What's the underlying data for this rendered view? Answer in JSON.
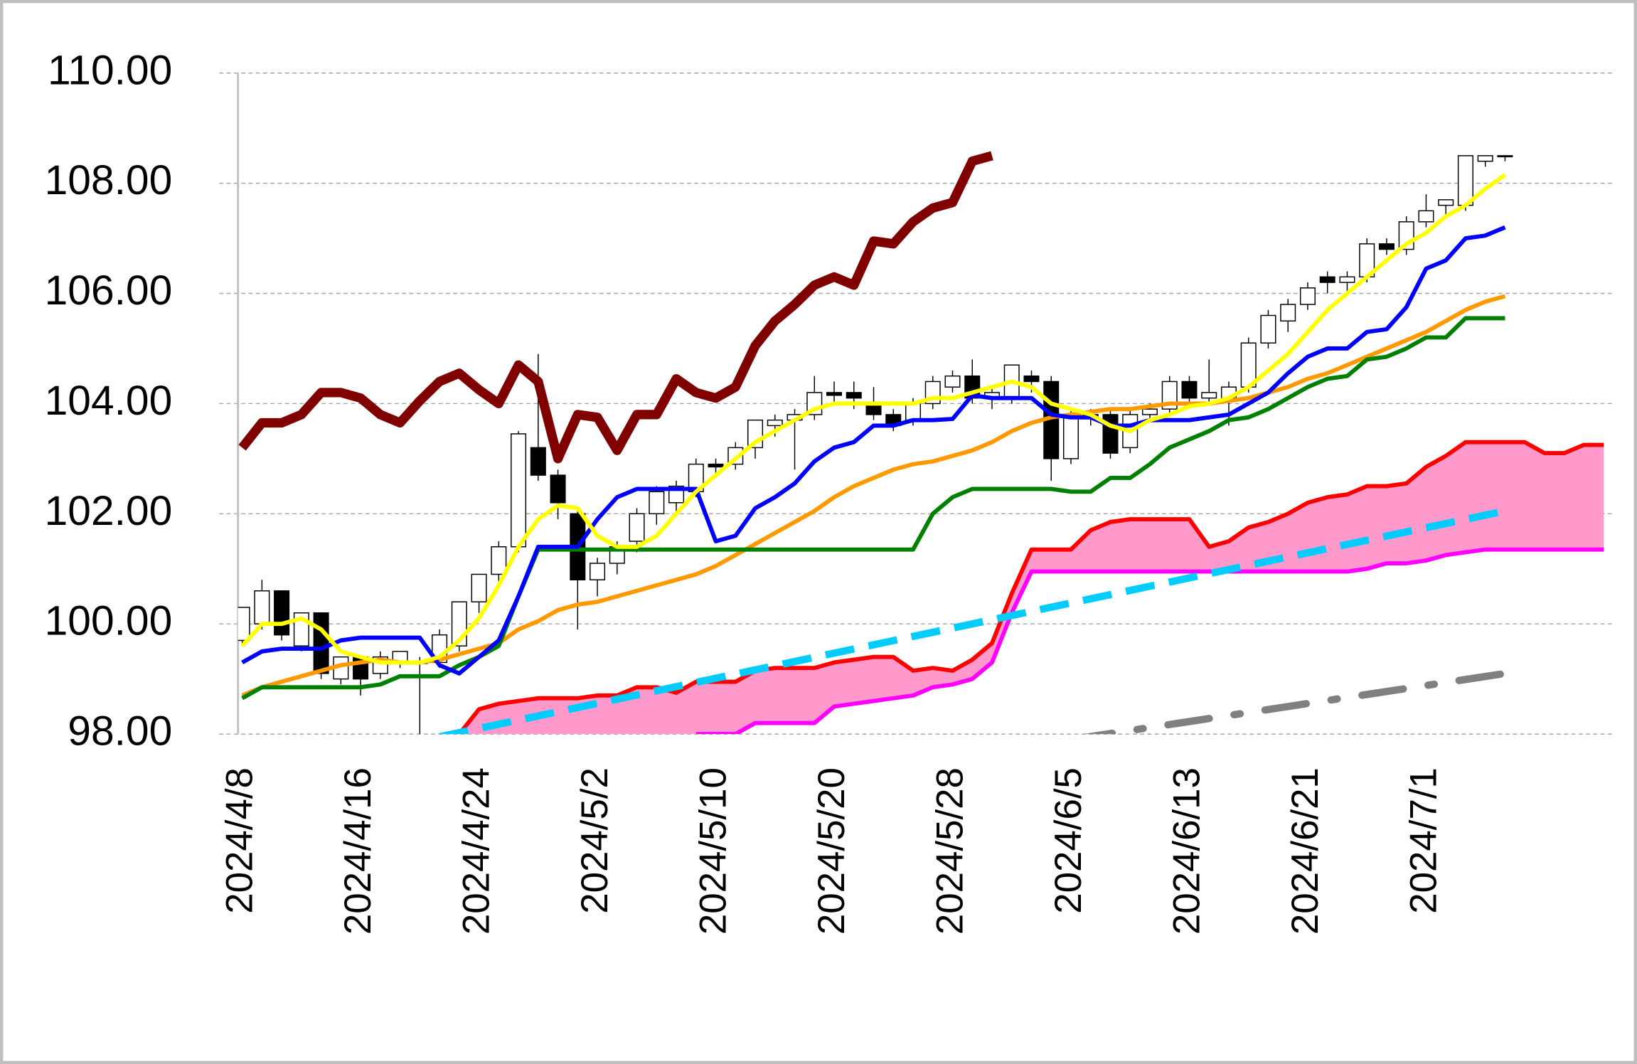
{
  "chart_data": {
    "type": "candlestick",
    "categories": [
      "2024/4/8",
      null,
      null,
      null,
      null,
      null,
      "2024/4/16",
      null,
      null,
      null,
      null,
      null,
      "2024/4/24",
      null,
      null,
      null,
      null,
      null,
      "2024/5/2",
      null,
      null,
      null,
      null,
      null,
      "2024/5/10",
      null,
      null,
      null,
      null,
      null,
      "2024/5/20",
      null,
      null,
      null,
      null,
      null,
      "2024/5/28",
      null,
      null,
      null,
      null,
      null,
      "2024/6/5",
      null,
      null,
      null,
      null,
      null,
      "2024/6/13",
      null,
      null,
      null,
      null,
      null,
      "2024/6/21",
      null,
      null,
      null,
      null,
      null,
      "2024/7/1",
      null,
      null,
      null,
      null,
      null,
      null,
      null,
      null,
      null
    ],
    "ylim": [
      98,
      110
    ],
    "yticks": [
      {
        "value": 98,
        "label": "98.00"
      },
      {
        "value": 100,
        "label": "100.00"
      },
      {
        "value": 102,
        "label": "102.00"
      },
      {
        "value": 104,
        "label": "104.00"
      },
      {
        "value": 106,
        "label": "106.00"
      },
      {
        "value": 108,
        "label": "108.00"
      },
      {
        "value": 110,
        "label": "110.00"
      }
    ],
    "grid": true,
    "up_color": "#ffffff",
    "down_color": "#000000",
    "candles": [
      [
        99.7,
        100.3,
        99.6,
        100.3
      ],
      [
        100.0,
        100.8,
        99.9,
        100.6
      ],
      [
        100.6,
        100.6,
        99.7,
        99.8
      ],
      [
        99.6,
        100.2,
        99.5,
        100.2
      ],
      [
        100.2,
        100.2,
        99.0,
        99.1
      ],
      [
        99.0,
        99.4,
        98.9,
        99.4
      ],
      [
        99.4,
        99.4,
        98.7,
        99.0
      ],
      [
        99.1,
        99.5,
        99.0,
        99.4
      ],
      [
        99.3,
        99.5,
        99.2,
        99.5
      ],
      [
        99.3,
        99.4,
        97.9,
        99.3
      ],
      [
        99.3,
        99.9,
        99.2,
        99.8
      ],
      [
        99.6,
        100.4,
        99.5,
        100.4
      ],
      [
        100.4,
        100.9,
        100.2,
        100.9
      ],
      [
        100.9,
        101.5,
        100.7,
        101.4
      ],
      [
        101.4,
        103.5,
        101.3,
        103.45
      ],
      [
        103.2,
        104.9,
        102.6,
        102.7
      ],
      [
        102.7,
        102.8,
        101.9,
        102.2
      ],
      [
        102.0,
        102.1,
        99.9,
        100.8
      ],
      [
        100.8,
        101.2,
        100.5,
        101.1
      ],
      [
        101.1,
        101.5,
        100.9,
        101.4
      ],
      [
        101.5,
        102.1,
        101.3,
        102.0
      ],
      [
        102.0,
        102.5,
        101.8,
        102.4
      ],
      [
        102.2,
        102.6,
        102.0,
        102.5
      ],
      [
        102.4,
        103.0,
        102.3,
        102.9
      ],
      [
        102.9,
        103.0,
        102.7,
        102.85
      ],
      [
        102.9,
        103.3,
        102.8,
        103.2
      ],
      [
        103.2,
        103.7,
        103.0,
        103.7
      ],
      [
        103.6,
        103.8,
        103.4,
        103.7
      ],
      [
        103.7,
        103.9,
        102.8,
        103.8
      ],
      [
        103.8,
        104.5,
        103.7,
        104.2
      ],
      [
        104.2,
        104.4,
        104.0,
        104.15
      ],
      [
        104.2,
        104.4,
        103.9,
        104.1
      ],
      [
        104.0,
        104.3,
        103.7,
        103.8
      ],
      [
        103.8,
        103.9,
        103.5,
        103.6
      ],
      [
        103.7,
        104.1,
        103.6,
        104.0
      ],
      [
        104.0,
        104.5,
        103.9,
        104.4
      ],
      [
        104.3,
        104.6,
        104.2,
        104.5
      ],
      [
        104.5,
        104.8,
        104.0,
        104.1
      ],
      [
        104.1,
        104.3,
        103.9,
        104.2
      ],
      [
        104.1,
        104.7,
        104.0,
        104.7
      ],
      [
        104.5,
        104.6,
        104.2,
        104.4
      ],
      [
        104.4,
        104.5,
        102.6,
        103.0
      ],
      [
        103.0,
        103.9,
        102.9,
        103.8
      ],
      [
        103.8,
        103.9,
        103.6,
        103.75
      ],
      [
        103.8,
        103.9,
        103.0,
        103.1
      ],
      [
        103.2,
        103.9,
        103.1,
        103.8
      ],
      [
        103.8,
        104.0,
        103.7,
        103.9
      ],
      [
        103.9,
        104.5,
        103.8,
        104.4
      ],
      [
        104.4,
        104.5,
        104.0,
        104.1
      ],
      [
        104.1,
        104.8,
        104.0,
        104.2
      ],
      [
        104.1,
        104.4,
        103.6,
        104.3
      ],
      [
        104.3,
        105.2,
        104.2,
        105.1
      ],
      [
        105.1,
        105.7,
        105.0,
        105.6
      ],
      [
        105.5,
        105.9,
        105.3,
        105.8
      ],
      [
        105.8,
        106.2,
        105.7,
        106.1
      ],
      [
        106.3,
        106.4,
        106.0,
        106.2
      ],
      [
        106.2,
        106.4,
        106.0,
        106.3
      ],
      [
        106.3,
        107.0,
        106.2,
        106.9
      ],
      [
        106.9,
        107.0,
        106.7,
        106.8
      ],
      [
        106.8,
        107.4,
        106.7,
        107.3
      ],
      [
        107.3,
        107.8,
        107.2,
        107.5
      ],
      [
        107.6,
        107.7,
        107.4,
        107.7
      ],
      [
        107.6,
        108.5,
        107.5,
        108.5
      ],
      [
        108.4,
        108.5,
        108.3,
        108.5
      ],
      [
        108.5,
        108.5,
        108.4,
        108.5
      ],
      null,
      null,
      null,
      null,
      null
    ],
    "cloud": {
      "color": "#ff99cc"
    },
    "series": [
      {
        "color": "#ff0000",
        "style": "solid",
        "values": [
          null,
          null,
          null,
          null,
          null,
          null,
          null,
          null,
          null,
          null,
          null,
          98.0,
          98.45,
          98.55,
          98.6,
          98.65,
          98.65,
          98.65,
          98.7,
          98.7,
          98.85,
          98.85,
          98.75,
          98.95,
          98.95,
          98.95,
          99.15,
          99.2,
          99.2,
          99.2,
          99.3,
          99.35,
          99.4,
          99.4,
          99.15,
          99.2,
          99.15,
          99.35,
          99.65,
          100.55,
          101.35,
          101.35,
          101.35,
          101.7,
          101.85,
          101.9,
          101.9,
          101.9,
          101.9,
          101.4,
          101.5,
          101.75,
          101.85,
          102.0,
          102.2,
          102.3,
          102.35,
          102.5,
          102.5,
          102.55,
          102.85,
          103.05,
          103.3,
          103.3,
          103.3,
          103.3,
          103.1,
          103.1,
          103.25,
          103.25
        ]
      },
      {
        "color": "#ff00ff",
        "style": "solid",
        "values": [
          null,
          null,
          null,
          null,
          null,
          null,
          null,
          null,
          null,
          null,
          null,
          null,
          null,
          null,
          null,
          null,
          null,
          null,
          null,
          null,
          null,
          null,
          null,
          98.0,
          98.0,
          98.0,
          98.2,
          98.2,
          98.2,
          98.2,
          98.5,
          98.55,
          98.6,
          98.65,
          98.7,
          98.85,
          98.9,
          99.0,
          99.3,
          100.2,
          100.95,
          100.95,
          100.95,
          100.95,
          100.95,
          100.95,
          100.95,
          100.95,
          100.95,
          100.95,
          100.95,
          100.95,
          100.95,
          100.95,
          100.95,
          100.95,
          100.95,
          101.0,
          101.1,
          101.1,
          101.15,
          101.25,
          101.3,
          101.35,
          101.35,
          101.35,
          101.35,
          101.35,
          101.35,
          101.35
        ]
      },
      {
        "color": "#ff9900",
        "style": "solid",
        "values": [
          98.7,
          98.85,
          98.95,
          99.05,
          99.15,
          99.25,
          99.3,
          99.35,
          99.3,
          99.3,
          99.35,
          99.45,
          99.55,
          99.65,
          99.9,
          100.05,
          100.25,
          100.35,
          100.4,
          100.5,
          100.6,
          100.7,
          100.8,
          100.9,
          101.05,
          101.25,
          101.45,
          101.65,
          101.85,
          102.05,
          102.3,
          102.5,
          102.65,
          102.8,
          102.9,
          102.95,
          103.05,
          103.15,
          103.3,
          103.5,
          103.65,
          103.75,
          103.8,
          103.85,
          103.9,
          103.9,
          103.95,
          104.0,
          104.0,
          104.0,
          104.05,
          104.1,
          104.2,
          104.3,
          104.45,
          104.55,
          104.7,
          104.85,
          105.0,
          105.15,
          105.3,
          105.5,
          105.7,
          105.85,
          105.95,
          null,
          null,
          null,
          null,
          null
        ]
      },
      {
        "color": "#008000",
        "style": "solid",
        "values": [
          98.65,
          98.85,
          98.85,
          98.85,
          98.85,
          98.85,
          98.85,
          98.9,
          99.05,
          99.05,
          99.05,
          99.25,
          99.4,
          99.6,
          100.5,
          101.35,
          101.35,
          101.35,
          101.35,
          101.35,
          101.35,
          101.35,
          101.35,
          101.35,
          101.35,
          101.35,
          101.35,
          101.35,
          101.35,
          101.35,
          101.35,
          101.35,
          101.35,
          101.35,
          101.35,
          102.0,
          102.3,
          102.45,
          102.45,
          102.45,
          102.45,
          102.45,
          102.4,
          102.4,
          102.65,
          102.65,
          102.9,
          103.2,
          103.35,
          103.5,
          103.7,
          103.75,
          103.9,
          104.1,
          104.3,
          104.45,
          104.5,
          104.8,
          104.85,
          105.0,
          105.2,
          105.2,
          105.55,
          105.55,
          105.55,
          null,
          null,
          null,
          null,
          null
        ]
      },
      {
        "color": "#0000ff",
        "style": "solid",
        "values": [
          99.3,
          99.5,
          99.55,
          99.55,
          99.55,
          99.7,
          99.75,
          99.75,
          99.75,
          99.75,
          99.25,
          99.1,
          99.4,
          99.7,
          100.5,
          101.4,
          101.4,
          101.4,
          101.9,
          102.3,
          102.45,
          102.45,
          102.45,
          102.45,
          101.5,
          101.6,
          102.1,
          102.3,
          102.55,
          102.95,
          103.2,
          103.3,
          103.6,
          103.6,
          103.7,
          103.7,
          103.72,
          104.15,
          104.1,
          104.1,
          104.1,
          103.8,
          103.75,
          103.75,
          103.6,
          103.6,
          103.7,
          103.7,
          103.7,
          103.75,
          103.8,
          104.0,
          104.2,
          104.55,
          104.85,
          105.0,
          105.0,
          105.3,
          105.35,
          105.75,
          106.45,
          106.6,
          107.0,
          107.05,
          107.2,
          null,
          null,
          null,
          null,
          null
        ]
      },
      {
        "color": "#ffff00",
        "style": "solid",
        "values": [
          99.6,
          100.0,
          100.0,
          100.1,
          99.9,
          99.5,
          99.4,
          99.3,
          99.3,
          99.3,
          99.4,
          99.7,
          100.1,
          100.7,
          101.4,
          101.9,
          102.15,
          102.1,
          101.6,
          101.4,
          101.4,
          101.6,
          102.0,
          102.4,
          102.7,
          103.0,
          103.3,
          103.5,
          103.7,
          103.9,
          104.0,
          104.0,
          104.0,
          104.0,
          104.0,
          104.1,
          104.1,
          104.2,
          104.3,
          104.4,
          104.3,
          104.0,
          103.9,
          103.8,
          103.6,
          103.5,
          103.7,
          103.8,
          103.95,
          104.0,
          104.1,
          104.3,
          104.6,
          104.9,
          105.3,
          105.7,
          106.0,
          106.3,
          106.6,
          106.9,
          107.1,
          107.4,
          107.6,
          107.9,
          108.15,
          null,
          null,
          null,
          null,
          null
        ]
      },
      {
        "color": "#800000",
        "style": "thick",
        "values": [
          103.2,
          103.65,
          103.65,
          103.8,
          104.2,
          104.2,
          104.1,
          103.8,
          103.65,
          104.05,
          104.4,
          104.55,
          104.25,
          104.0,
          104.7,
          104.4,
          103.0,
          103.8,
          103.75,
          103.15,
          103.8,
          103.8,
          104.45,
          104.2,
          104.1,
          104.3,
          105.05,
          105.5,
          105.8,
          106.15,
          106.3,
          106.15,
          106.95,
          106.9,
          107.3,
          107.55,
          107.65,
          108.4,
          108.5,
          null,
          null,
          null,
          null,
          null,
          null,
          null,
          null,
          null,
          null,
          null,
          null,
          null,
          null,
          null,
          null,
          null,
          null,
          null,
          null,
          null,
          null,
          null,
          null,
          null,
          null,
          null,
          null,
          null,
          null,
          null
        ]
      }
    ],
    "trendlines": [
      {
        "color": "#00ccff",
        "style": "dashed",
        "x": [
          10,
          64
        ],
        "values": [
          97.95,
          102.05
        ]
      },
      {
        "color": "#808080",
        "style": "dashdot",
        "x": [
          42,
          64
        ],
        "values": [
          97.9,
          99.1
        ]
      }
    ]
  }
}
